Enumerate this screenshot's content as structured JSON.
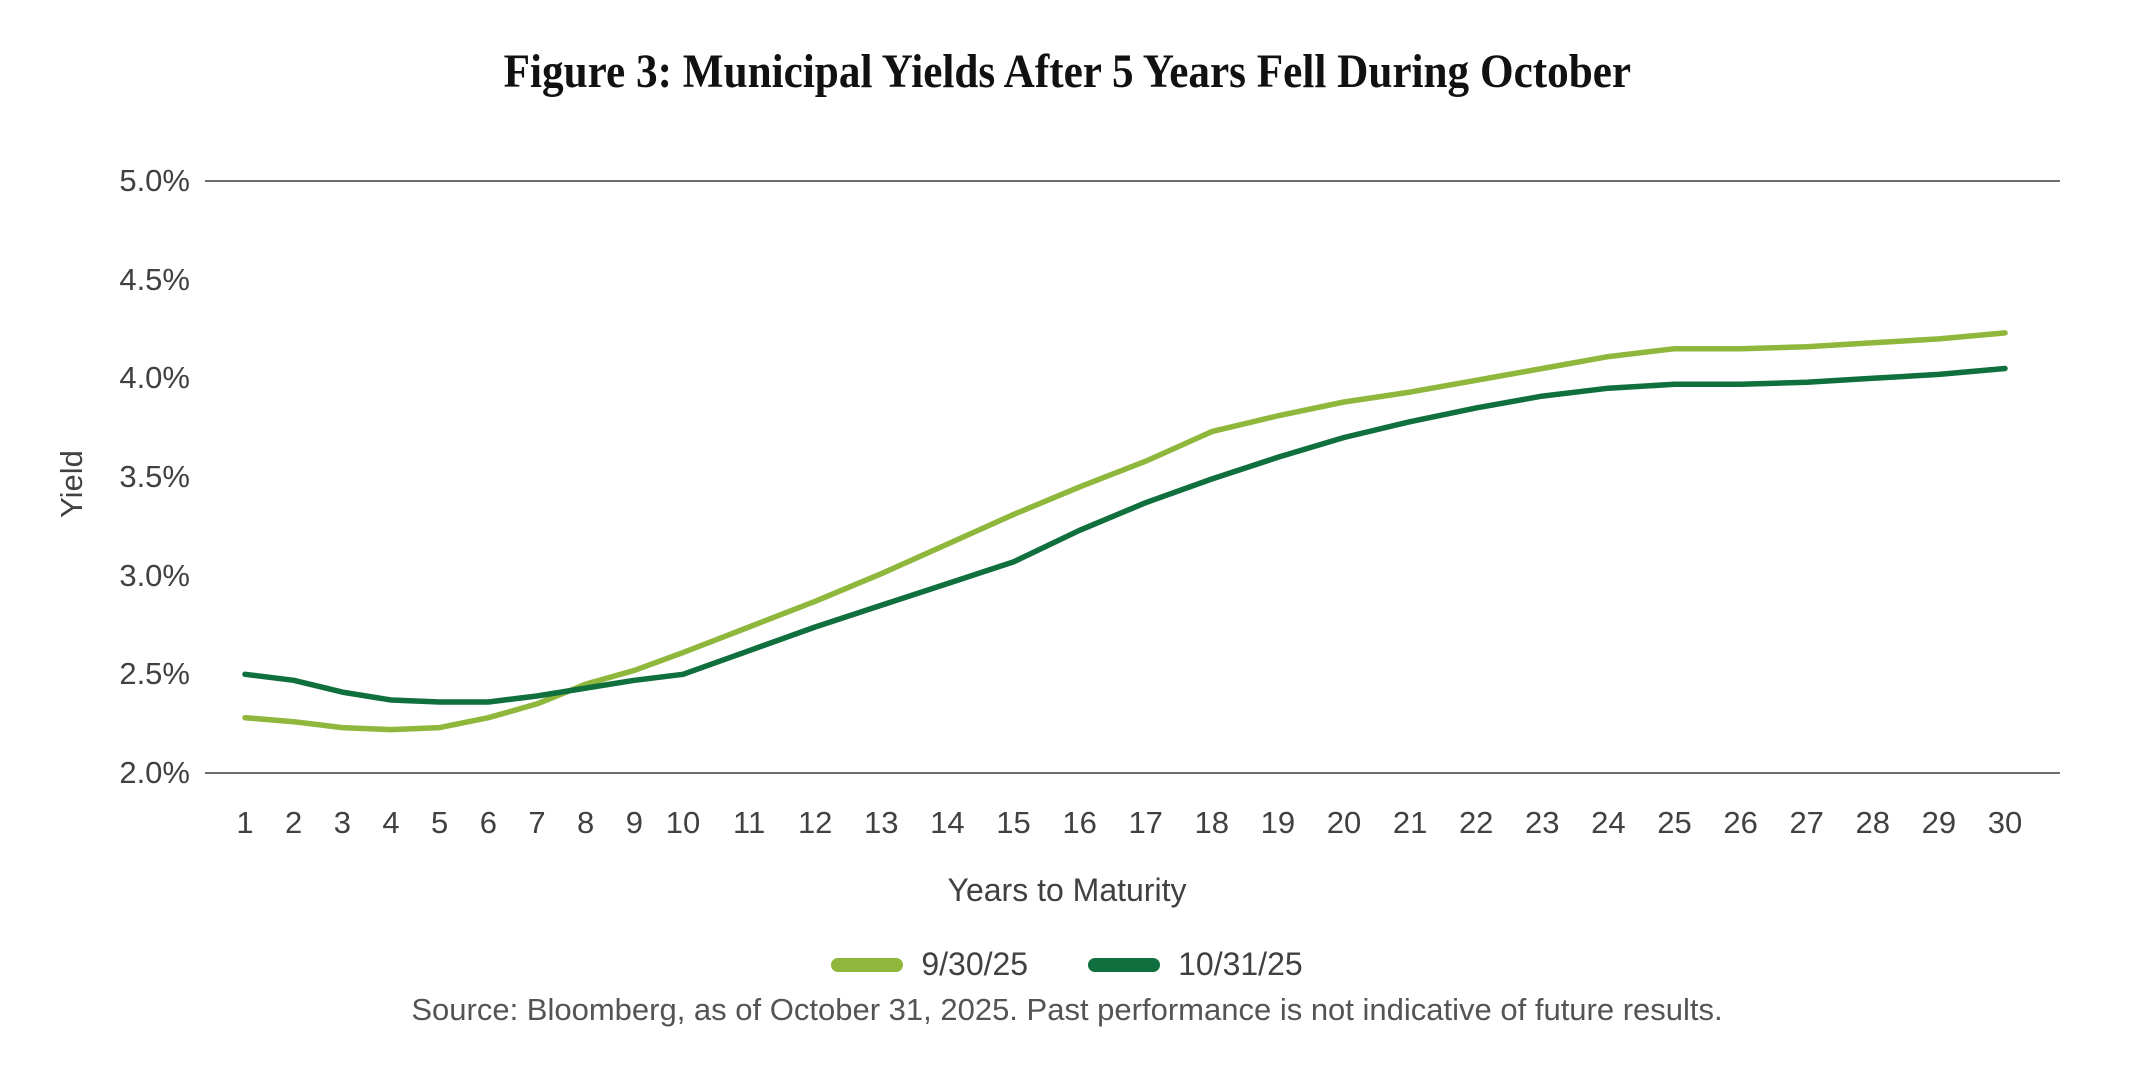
{
  "title": "Figure 3: Municipal Yields After 5 Years Fell During October",
  "source_note": "Source: Bloomberg, as of October 31, 2025. Past performance is not indicative of future results.",
  "colors": {
    "series_light_green": "#8FB73C",
    "series_dark_green": "#0F6F3D",
    "gridline_gray": "#6e6e6e",
    "text_gray": "#414042",
    "source_gray": "#545456",
    "title_black": "#111111"
  },
  "chart_data": {
    "type": "line",
    "title": "Figure 3: Municipal Yields After 5 Years Fell During October",
    "xlabel": "Years to Maturity",
    "ylabel": "Yield",
    "x": [
      1,
      2,
      3,
      4,
      5,
      6,
      7,
      8,
      9,
      10,
      11,
      12,
      13,
      14,
      15,
      16,
      17,
      18,
      19,
      20,
      21,
      22,
      23,
      24,
      25,
      26,
      27,
      28,
      29,
      30
    ],
    "series": [
      {
        "name": "9/30/25",
        "color": "#8FB73C",
        "values": [
          2.28,
          2.26,
          2.23,
          2.22,
          2.23,
          2.28,
          2.35,
          2.45,
          2.52,
          2.61,
          2.74,
          2.87,
          3.01,
          3.16,
          3.31,
          3.45,
          3.58,
          3.73,
          3.81,
          3.88,
          3.93,
          3.99,
          4.05,
          4.11,
          4.15,
          4.15,
          4.16,
          4.18,
          4.2,
          4.23
        ]
      },
      {
        "name": "10/31/25",
        "color": "#0F6F3D",
        "values": [
          2.5,
          2.47,
          2.41,
          2.37,
          2.36,
          2.36,
          2.39,
          2.43,
          2.47,
          2.5,
          2.62,
          2.74,
          2.85,
          2.96,
          3.07,
          3.23,
          3.37,
          3.49,
          3.6,
          3.7,
          3.78,
          3.85,
          3.91,
          3.95,
          3.97,
          3.97,
          3.98,
          4.0,
          4.02,
          4.05
        ]
      }
    ],
    "ylim": [
      2.0,
      5.0
    ],
    "yticks": [
      {
        "value": 5.0,
        "label": "5.0%"
      },
      {
        "value": 4.5,
        "label": "4.5%"
      },
      {
        "value": 4.0,
        "label": "4.0%"
      },
      {
        "value": 3.5,
        "label": "3.5%"
      },
      {
        "value": 3.0,
        "label": "3.0%"
      },
      {
        "value": 2.5,
        "label": "2.5%"
      },
      {
        "value": 2.0,
        "label": "2.0%"
      }
    ],
    "gridlines_at": [
      5.0,
      2.0
    ],
    "grid": "top and bottom rules only",
    "legend_position": "bottom-center"
  }
}
